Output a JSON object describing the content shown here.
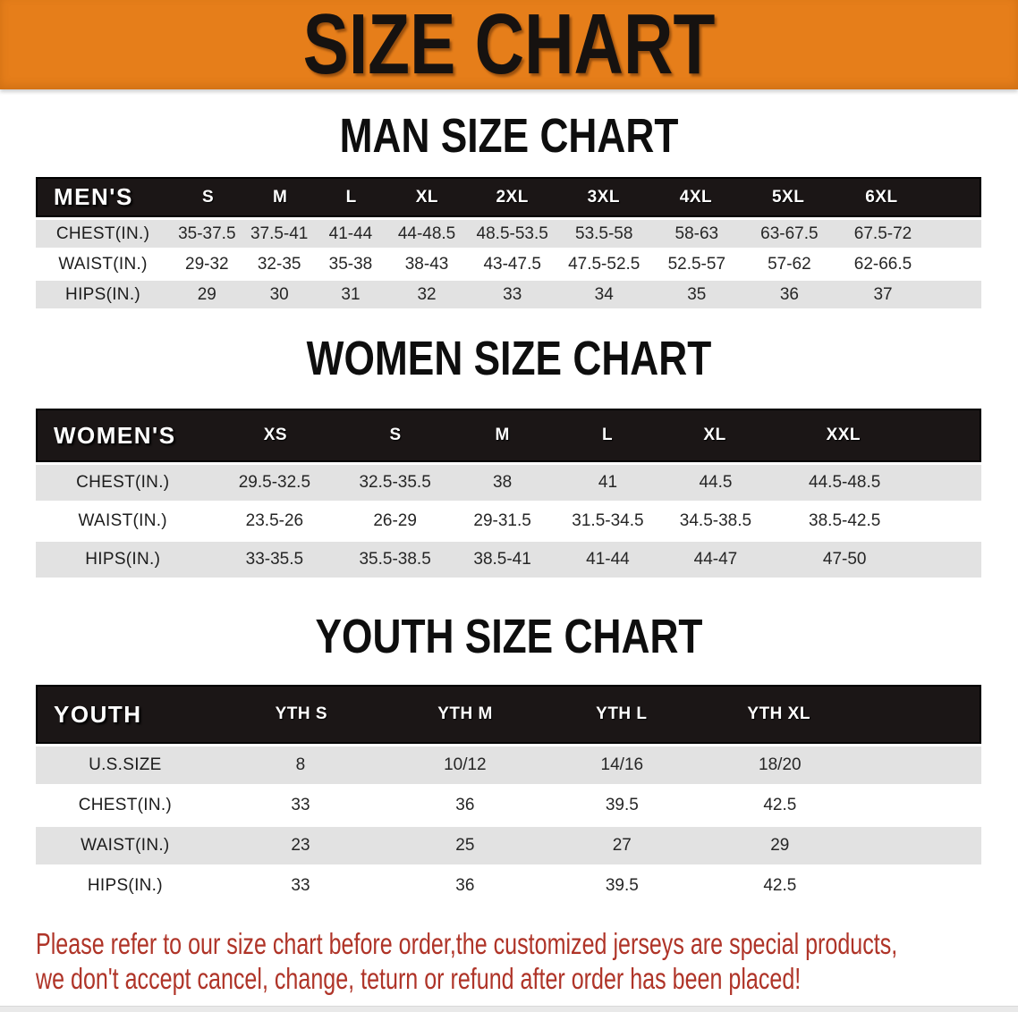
{
  "banner": {
    "title": "SIZE CHART"
  },
  "colors": {
    "banner_bg": "#E67E1A",
    "header_bg": "#1B1616",
    "row_alt_bg": "#E2E2E2",
    "note_red": "#AF3428"
  },
  "men": {
    "section_title": "MAN SIZE CHART",
    "corner": "MEN'S",
    "columns": [
      "S",
      "M",
      "L",
      "XL",
      "2XL",
      "3XL",
      "4XL",
      "5XL",
      "6XL"
    ],
    "rows": [
      {
        "label": "CHEST(IN.)",
        "values": [
          "35-37.5",
          "37.5-41",
          "41-44",
          "44-48.5",
          "48.5-53.5",
          "53.5-58",
          "58-63",
          "63-67.5",
          "67.5-72"
        ]
      },
      {
        "label": "WAIST(IN.)",
        "values": [
          "29-32",
          "32-35",
          "35-38",
          "38-43",
          "43-47.5",
          "47.5-52.5",
          "52.5-57",
          "57-62",
          "62-66.5"
        ]
      },
      {
        "label": "HIPS(IN.)",
        "values": [
          "29",
          "30",
          "31",
          "32",
          "33",
          "34",
          "35",
          "36",
          "37"
        ]
      }
    ]
  },
  "women": {
    "section_title": "WOMEN SIZE CHART",
    "corner": "WOMEN'S",
    "columns": [
      "XS",
      "S",
      "M",
      "L",
      "XL",
      "XXL"
    ],
    "rows": [
      {
        "label": "CHEST(IN.)",
        "values": [
          "29.5-32.5",
          "32.5-35.5",
          "38",
          "41",
          "44.5",
          "44.5-48.5"
        ]
      },
      {
        "label": "WAIST(IN.)",
        "values": [
          "23.5-26",
          "26-29",
          "29-31.5",
          "31.5-34.5",
          "34.5-38.5",
          "38.5-42.5"
        ]
      },
      {
        "label": "HIPS(IN.)",
        "values": [
          "33-35.5",
          "35.5-38.5",
          "38.5-41",
          "41-44",
          "44-47",
          "47-50"
        ]
      }
    ]
  },
  "youth": {
    "section_title": "YOUTH SIZE CHART",
    "corner": "YOUTH",
    "columns": [
      "YTH S",
      "YTH M",
      "YTH L",
      "YTH XL"
    ],
    "rows": [
      {
        "label": "U.S.SIZE",
        "values": [
          "8",
          "10/12",
          "14/16",
          "18/20"
        ]
      },
      {
        "label": "CHEST(IN.)",
        "values": [
          "33",
          "36",
          "39.5",
          "42.5"
        ]
      },
      {
        "label": "WAIST(IN.)",
        "values": [
          "23",
          "25",
          "27",
          "29"
        ]
      },
      {
        "label": "HIPS(IN.)",
        "values": [
          "33",
          "36",
          "39.5",
          "42.5"
        ]
      }
    ]
  },
  "note": {
    "line1": "Please refer to our size chart before order,the customized jerseys are special products,",
    "line2": "we don't accept cancel, change, teturn or refund after order has been placed!"
  }
}
